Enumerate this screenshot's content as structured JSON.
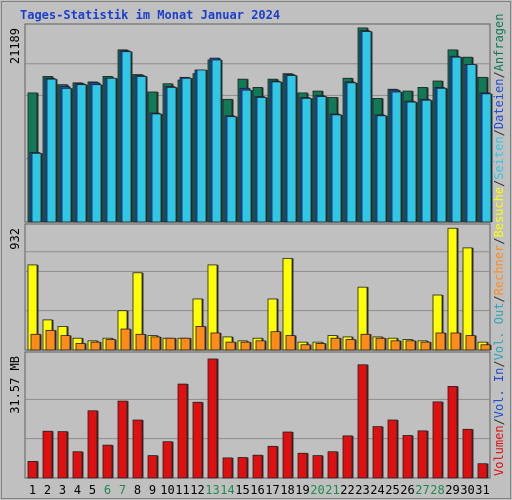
{
  "chart_data": [
    {
      "type": "bar",
      "title": "Tages-Statistik im Monat Januar 2024",
      "y_max_label": "21189",
      "ylim": [
        0,
        21189
      ],
      "categories": [
        "1",
        "2",
        "3",
        "4",
        "5",
        "6",
        "7",
        "8",
        "9",
        "10",
        "11",
        "12",
        "13",
        "14",
        "15",
        "16",
        "17",
        "18",
        "19",
        "20",
        "21",
        "22",
        "23",
        "24",
        "25",
        "26",
        "27",
        "28",
        "29",
        "30",
        "31"
      ],
      "weekend_days": [
        "6",
        "7",
        "13",
        "14",
        "20",
        "21",
        "27",
        "28"
      ],
      "series": [
        {
          "name": "Anfragen",
          "color": "#0f7a55",
          "values": [
            14100,
            15900,
            15000,
            15200,
            15300,
            15900,
            18800,
            16100,
            14200,
            15100,
            15500,
            16200,
            17700,
            13400,
            15600,
            14700,
            15600,
            16200,
            14100,
            14300,
            13600,
            15700,
            21200,
            13500,
            14500,
            14300,
            14700,
            15400,
            18800,
            18000,
            15800
          ]
        },
        {
          "name": "Dateien",
          "color": "#1f4fd0",
          "values": [
            7600,
            15700,
            14800,
            15100,
            15200,
            15700,
            18700,
            16000,
            11900,
            14800,
            15800,
            16600,
            17900,
            11600,
            14600,
            13700,
            15400,
            16100,
            13600,
            13800,
            11800,
            15300,
            20900,
            11700,
            14400,
            13200,
            13400,
            14700,
            18100,
            17200,
            14100
          ]
        },
        {
          "name": "Seiten",
          "color": "#2ec8e6",
          "values": [
            7500,
            15600,
            14600,
            15000,
            15000,
            15700,
            18600,
            15900,
            11800,
            14700,
            15700,
            16600,
            17700,
            11500,
            14400,
            13600,
            15300,
            16000,
            13500,
            13700,
            11700,
            15200,
            20800,
            11600,
            14200,
            13100,
            13300,
            14600,
            18000,
            17200,
            14000
          ]
        }
      ]
    },
    {
      "type": "bar",
      "y_max_label": "932",
      "ylim": [
        0,
        932
      ],
      "series": [
        {
          "name": "Besuche",
          "color": "#ffff00",
          "values": [
            650,
            230,
            180,
            90,
            70,
            90,
            300,
            590,
            110,
            90,
            90,
            390,
            650,
            100,
            70,
            90,
            390,
            700,
            60,
            60,
            110,
            100,
            480,
            100,
            90,
            80,
            70,
            420,
            930,
            780,
            60
          ]
        },
        {
          "name": "Rechner",
          "color": "#ff8c1a",
          "values": [
            120,
            150,
            110,
            50,
            60,
            80,
            160,
            120,
            100,
            90,
            90,
            180,
            130,
            60,
            60,
            70,
            140,
            110,
            40,
            50,
            90,
            80,
            120,
            90,
            70,
            70,
            60,
            130,
            130,
            110,
            40
          ]
        }
      ]
    },
    {
      "type": "bar",
      "y_max_label": "31.57 MB",
      "ylim": [
        0,
        31.57
      ],
      "series": [
        {
          "name": "Vol. Out",
          "color": "#2fa5b4",
          "values": []
        },
        {
          "name": "Vol. In",
          "color": "#1f4fd0",
          "values": []
        },
        {
          "name": "Volumen",
          "color": "#e01010",
          "values": [
            4.3,
            12.1,
            12.0,
            6.8,
            17.4,
            8.5,
            19.9,
            15.0,
            5.8,
            9.4,
            24.3,
            19.6,
            30.8,
            5.2,
            5.3,
            5.9,
            8.2,
            11.9,
            6.4,
            5.8,
            6.8,
            10.9,
            29.3,
            13.3,
            15.0,
            11.0,
            12.2,
            19.7,
            23.7,
            12.6,
            3.7
          ]
        }
      ]
    }
  ],
  "legend_labels": [
    "Volumen",
    "/",
    "Vol. In",
    "/",
    "Vol. Out",
    "/",
    "Rechner",
    "/",
    "Besuche",
    "/",
    "Seiten",
    "/",
    "Dateien",
    "/",
    "Anfragen"
  ],
  "legend_colors": [
    "#e01010",
    "#333333",
    "#1f4fd0",
    "#333333",
    "#2fa5b4",
    "#333333",
    "#ff8c1a",
    "#333333",
    "#ffff00",
    "#333333",
    "#2ec8e6",
    "#333333",
    "#1f4fd0",
    "#333333",
    "#0f7a55"
  ],
  "axis_colors": {
    "weekday": "#000000",
    "weekend": "#1f8a50"
  },
  "colors": {
    "title": "#1a3fcc",
    "panel": "#c0c0c0",
    "grid": "#8c8c8c"
  }
}
